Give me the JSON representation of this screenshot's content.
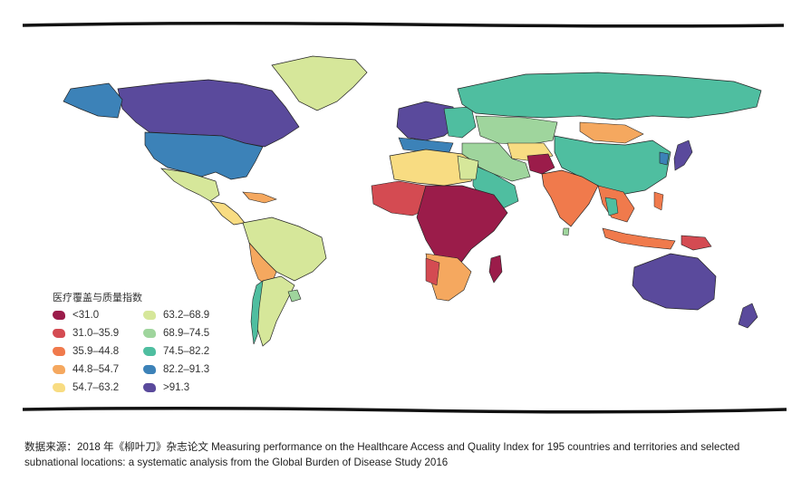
{
  "legend": {
    "title": "医疗覆盖与质量指数",
    "items": [
      {
        "label": "<31.0",
        "color": "#9b1c4a"
      },
      {
        "label": "31.0–35.9",
        "color": "#d44b52"
      },
      {
        "label": "35.9–44.8",
        "color": "#f07a4c"
      },
      {
        "label": "44.8–54.7",
        "color": "#f5a85f"
      },
      {
        "label": "54.7–63.2",
        "color": "#f8dc82"
      },
      {
        "label": "63.2–68.9",
        "color": "#d6e79a"
      },
      {
        "label": "68.9–74.5",
        "color": "#9fd59d"
      },
      {
        "label": "74.5–82.2",
        "color": "#4fbea0"
      },
      {
        "label": "82.2–91.3",
        "color": "#3c82b8"
      },
      {
        "label": ">91.3",
        "color": "#5a4a9c"
      }
    ]
  },
  "caption": {
    "line1": "数据来源：2018 年《柳叶刀》杂志论文 Measuring performance on the Healthcare Access and Quality Index for 195 countries and territories and selected",
    "line2": "subnational locations: a systematic analysis from the Global Burden of Disease Study 2016"
  }
}
